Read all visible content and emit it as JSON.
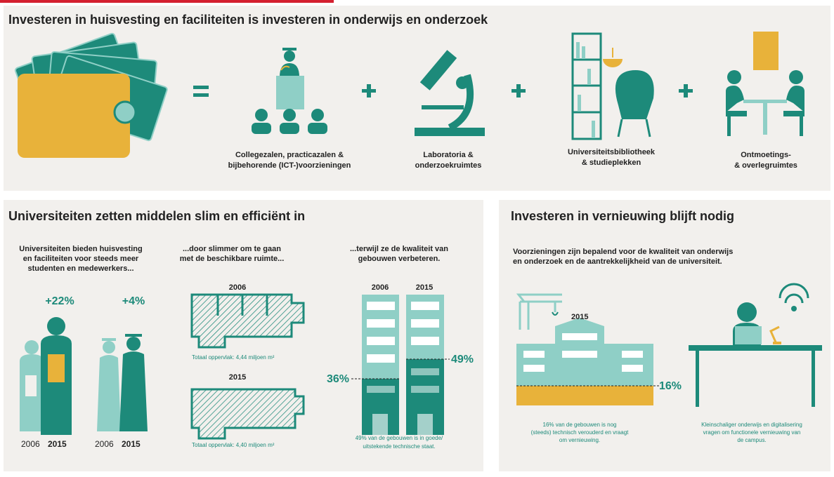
{
  "top": {
    "title": "Investeren in huisvesting en faciliteiten is investeren in onderwijs en onderzoek",
    "items": [
      {
        "label": [
          "Collegezalen, practicazalen &",
          "bijbehorende (ICT-)voorzieningen"
        ]
      },
      {
        "label": [
          "Laboratoria &",
          "onderzoekruimtes"
        ]
      },
      {
        "label": [
          "Universiteitsbibliotheek",
          "& studieplekken"
        ]
      },
      {
        "label": [
          "Ontmoetings-",
          "& overlegruimtes"
        ]
      }
    ]
  },
  "efficiency": {
    "title": "Universiteiten zetten middelen slim en efficiënt in",
    "columns": [
      {
        "text": [
          "Universiteiten bieden huisvesting",
          "en faciliteiten voor steeds meer",
          "studenten en medewerkers..."
        ]
      },
      {
        "text": [
          "...door slimmer om te gaan",
          "met de beschikbare ruimte..."
        ]
      },
      {
        "text": [
          "...terwijl ze de kwaliteit van",
          "gebouwen verbeteren."
        ]
      }
    ],
    "growth": [
      {
        "value": "+22%",
        "years": [
          "2006",
          "2015"
        ]
      },
      {
        "value": "+4%",
        "years": [
          "2006",
          "2015"
        ]
      }
    ],
    "floorplans": [
      {
        "year": "2006",
        "caption": "Totaal oppervlak: 4,44 miljoen m²"
      },
      {
        "year": "2015",
        "caption": "Totaal oppervlak: 4,40 miljoen m²"
      }
    ],
    "buildings": {
      "years": [
        "2006",
        "2015"
      ],
      "shares": [
        "36%",
        "49%"
      ],
      "caption": [
        "49% van de gebouwen is in goede/",
        "uitstekende technische staat."
      ]
    }
  },
  "renewal": {
    "title": "Investeren in vernieuwing blijft nodig",
    "text": [
      "Voorzieningen zijn bepalend voor de kwaliteit van onderwijs",
      "en onderzoek en de aantrekkelijkheid van de universiteit."
    ],
    "year": "2015",
    "share": "16%",
    "captions": [
      [
        "16% van de gebouwen is nog",
        "(steeds) technisch verouderd en vraagt",
        "om vernieuwing."
      ],
      [
        "Kleinschaliger onderwijs en digitalisering",
        "vragen om functionele vernieuwing van",
        "de campus."
      ]
    ]
  }
}
